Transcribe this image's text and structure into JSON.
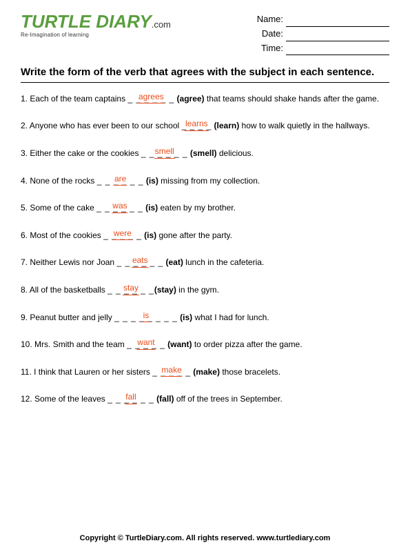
{
  "logo": {
    "main": "TURTLE DIARY",
    "domain": ".com",
    "tagline": "Re-Imagination of learning"
  },
  "fields": {
    "name": "Name:",
    "date": "Date:",
    "time": "Time:"
  },
  "instructions": "Write the form of the verb that agrees with the subject in each sentence.",
  "colors": {
    "answer": "#e84c1a",
    "logo": "#5a9e3e",
    "text": "#000000",
    "bg": "#ffffff"
  },
  "questions": [
    {
      "n": "1.",
      "pre": "Each of the team captains ",
      "dashL": "_ _ _ ",
      "answer": "agrees",
      "dashR": " _ _ _",
      "hint": " (agree)",
      "post": " that teams should shake hands after the game."
    },
    {
      "n": "2.",
      "pre": "Anyone who has ever been to our school ",
      "dashL": "_ _ ",
      "answer": "learns",
      "dashR": " _ _",
      "hint": " (learn)",
      "post": " how to walk quietly in the hallways."
    },
    {
      "n": "3.",
      "pre": "Either the cake or the cookies ",
      "dashL": "_ _ _ ",
      "answer": "smell",
      "dashR": " _ _ _",
      "hint": " (smell)",
      "post": " delicious."
    },
    {
      "n": "4.",
      "pre": "None of the rocks ",
      "dashL": "_ _ _ ",
      "answer": "are",
      "dashR": " _ _ _",
      "hint": " (is)",
      "post": " missing from my collection."
    },
    {
      "n": "5.",
      "pre": "Some of the cake ",
      "dashL": "_ _ _ ",
      "answer": "was",
      "dashR": " _ _ _",
      "hint": " (is)",
      "post": " eaten by my brother."
    },
    {
      "n": "6.",
      "pre": "Most of the cookies ",
      "dashL": "_ _ _ ",
      "answer": "were",
      "dashR": " _ _",
      "hint": " (is)",
      "post": " gone after the party."
    },
    {
      "n": "7.",
      "pre": "Neither Lewis nor Joan ",
      "dashL": "_ _ _ ",
      "answer": "eats",
      "dashR": " _ _ _",
      "hint": " (eat)",
      "post": " lunch in the cafeteria."
    },
    {
      "n": "8.",
      "pre": "All of the basketballs ",
      "dashL": "_ _ _ ",
      "answer": "stay",
      "dashR": " _ _ _",
      "hint": "(stay)",
      "post": " in the gym."
    },
    {
      "n": "9.",
      "pre": "Peanut butter and jelly ",
      "dashL": "_ _ _ _ ",
      "answer": "is",
      "dashR": " _ _ _ _",
      "hint": " (is)",
      "post": " what I had for lunch."
    },
    {
      "n": "10.",
      "pre": "Mrs. Smith and the team ",
      "dashL": "_ _ _ ",
      "answer": "want",
      "dashR": " _ _",
      "hint": " (want)",
      "post": " to order pizza after the game."
    },
    {
      "n": "11.",
      "pre": "I think that Lauren or her sisters ",
      "dashL": "_ _ _ ",
      "answer": "make",
      "dashR": " _ _",
      "hint": " (make)",
      "post": " those bracelets."
    },
    {
      "n": "12.",
      "pre": "Some of the leaves ",
      "dashL": "_ _ _ ",
      "answer": "fall",
      "dashR": " _ _ _",
      "hint": " (fall)",
      "post": " off of the trees in September."
    }
  ],
  "footer": "Copyright © TurtleDiary.com. All rights reserved. www.turtlediary.com"
}
